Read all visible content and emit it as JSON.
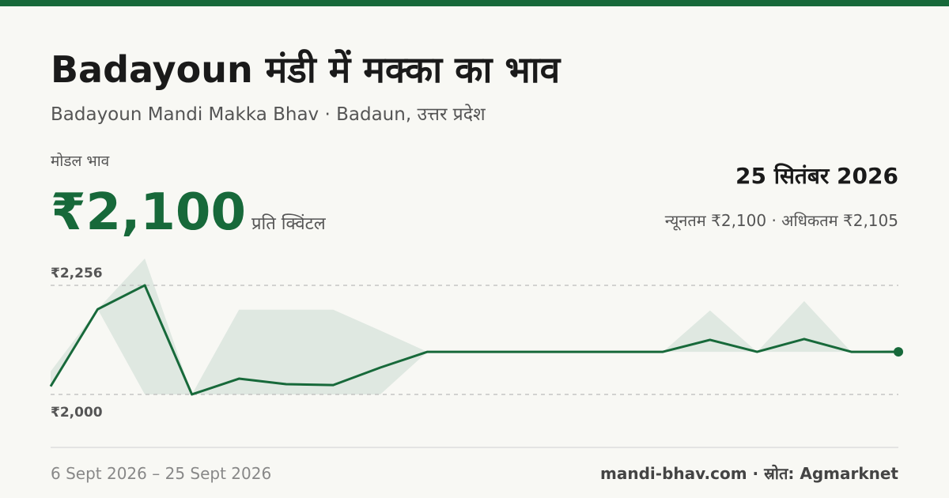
{
  "header": {
    "title": "Badayoun मंडी में मक्का का भाव",
    "subtitle": "Badayoun Mandi Makka Bhav · Badaun, उत्तर प्रदेश"
  },
  "price": {
    "label": "मोडल भाव",
    "value": "₹2,100",
    "unit": "प्रति क्विंटल",
    "date": "25 सितंबर 2026",
    "range": "न्यूनतम ₹2,100 · अधिकतम ₹2,105"
  },
  "footer": {
    "period": "6 Sept 2026 – 25 Sept 2026",
    "source": "mandi-bhav.com · स्रोत: Agmarknet"
  },
  "chart_data": {
    "type": "line",
    "categories": [
      null,
      null,
      null,
      null,
      null,
      null,
      null,
      null,
      null,
      null,
      null,
      null,
      null,
      null,
      null,
      null,
      null,
      null,
      null
    ],
    "series": [
      {
        "color": "#17693a",
        "values": [
          2019,
          2200,
          2256,
          2000,
          2037,
          2024,
          2022,
          2063,
          2100,
          2100,
          2100,
          2100,
          2100,
          2100,
          2128,
          2100,
          2130,
          2100,
          2100
        ]
      }
    ],
    "band": {
      "color": "#dfe8e1",
      "low": [
        2019,
        2200,
        2000,
        2000,
        2000,
        2000,
        2000,
        2000,
        2100,
        2100,
        2100,
        2100,
        2100,
        2100,
        2100,
        2100,
        2100,
        2100,
        2100
      ],
      "high": [
        2054,
        2200,
        2319,
        2000,
        2199,
        2199,
        2199,
        2150,
        2100,
        2100,
        2100,
        2100,
        2100,
        2100,
        2197,
        2100,
        2219,
        2100,
        2105
      ]
    },
    "ylim": [
      1961,
      2319
    ],
    "yticks": [
      {
        "value": 2000,
        "label": "₹2,000"
      },
      {
        "value": 2256,
        "label": "₹2,256"
      }
    ],
    "grid": true
  }
}
